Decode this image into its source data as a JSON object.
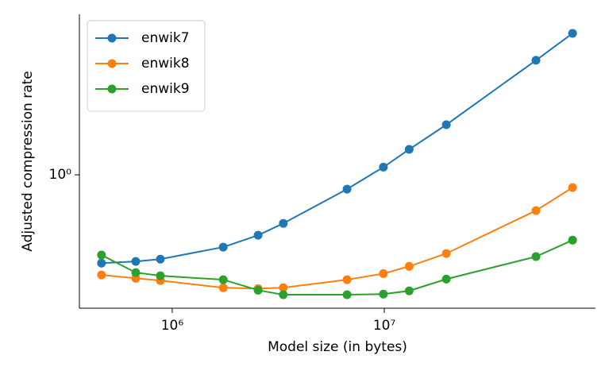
{
  "chart_data": {
    "type": "line",
    "xlabel": "Model size (in bytes)",
    "ylabel": "Adjusted compression rate",
    "xscale": "log",
    "yscale": "log",
    "x": [
      464000,
      673000,
      879000,
      1740000,
      2540000,
      3340000,
      6670000,
      9900000,
      13100000,
      19600000,
      51900000,
      77200000
    ],
    "series": [
      {
        "name": "enwik7",
        "color": "#1f77b4",
        "values": [
          0.414,
          0.421,
          0.431,
          0.486,
          0.547,
          0.616,
          0.867,
          1.08,
          1.29,
          1.65,
          3.14,
          4.11
        ]
      },
      {
        "name": "enwik8",
        "color": "#ff7f0e",
        "values": [
          0.368,
          0.356,
          0.348,
          0.324,
          0.321,
          0.324,
          0.351,
          0.373,
          0.401,
          0.456,
          0.7,
          0.881
        ]
      },
      {
        "name": "enwik9",
        "color": "#2ca02c",
        "values": [
          0.449,
          0.377,
          0.365,
          0.351,
          0.316,
          0.302,
          0.302,
          0.304,
          0.314,
          0.353,
          0.442,
          0.521
        ]
      }
    ],
    "xlim": [
      365000,
      99000000
    ],
    "ylim": [
      0.264,
      4.97
    ],
    "xticks": [
      {
        "value": 1000000,
        "label": "10⁶"
      },
      {
        "value": 10000000,
        "label": "10⁷"
      }
    ],
    "yticks": [
      {
        "value": 1,
        "label": "10⁰"
      }
    ],
    "legend": "upper left"
  }
}
